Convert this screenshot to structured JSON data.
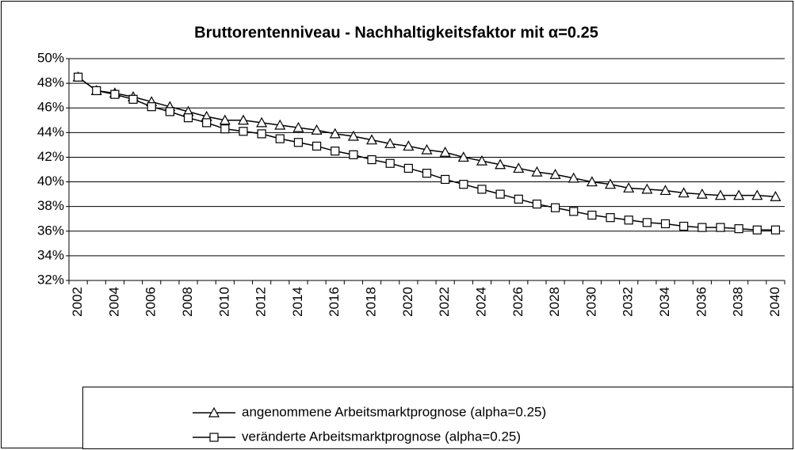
{
  "chart_data": {
    "type": "line",
    "title": "Bruttorentenniveau - Nachhaltigkeitsfaktor mit α=0.25",
    "categories": [
      2002,
      null,
      2004,
      null,
      2006,
      null,
      2008,
      null,
      2010,
      null,
      2012,
      null,
      2014,
      null,
      2016,
      null,
      2018,
      null,
      2020,
      null,
      2022,
      null,
      2024,
      null,
      2026,
      null,
      2028,
      null,
      2030,
      null,
      2032,
      null,
      2034,
      null,
      2036,
      null,
      2038,
      null,
      2040
    ],
    "ylim": [
      32,
      50
    ],
    "yticks": [
      {
        "value": 32,
        "label": "32%"
      },
      {
        "value": 34,
        "label": "34%"
      },
      {
        "value": 36,
        "label": "36%"
      },
      {
        "value": 38,
        "label": "38%"
      },
      {
        "value": 40,
        "label": "40%"
      },
      {
        "value": 42,
        "label": "42%"
      },
      {
        "value": 44,
        "label": "44%"
      },
      {
        "value": 46,
        "label": "46%"
      },
      {
        "value": 48,
        "label": "48%"
      },
      {
        "value": 50,
        "label": "50%"
      }
    ],
    "grid": true,
    "legend": "bottom",
    "series": [
      {
        "name": "angenommene Arbeitsmarktprognose (alpha=0.25)",
        "color": "#000000",
        "marker": "triangle",
        "values": [
          48.5,
          47.4,
          47.2,
          46.9,
          46.5,
          46.1,
          45.7,
          45.3,
          45.0,
          45.0,
          44.8,
          44.6,
          44.4,
          44.2,
          43.9,
          43.7,
          43.4,
          43.1,
          42.9,
          42.6,
          42.4,
          42.0,
          41.7,
          41.4,
          41.1,
          40.8,
          40.6,
          40.3,
          40.0,
          39.8,
          39.5,
          39.4,
          39.3,
          39.1,
          39.0,
          38.9,
          38.9,
          38.9,
          38.8
        ]
      },
      {
        "name": "veränderte Arbeitsmarktprognose (alpha=0.25)",
        "color": "#000000",
        "marker": "square",
        "values": [
          48.5,
          47.4,
          47.1,
          46.7,
          46.1,
          45.7,
          45.2,
          44.8,
          44.3,
          44.1,
          43.9,
          43.5,
          43.2,
          42.9,
          42.5,
          42.2,
          41.8,
          41.5,
          41.1,
          40.7,
          40.2,
          39.8,
          39.4,
          39.0,
          38.6,
          38.2,
          37.9,
          37.6,
          37.3,
          37.1,
          36.9,
          36.7,
          36.6,
          36.4,
          36.3,
          36.3,
          36.2,
          36.1,
          36.1
        ]
      }
    ]
  }
}
